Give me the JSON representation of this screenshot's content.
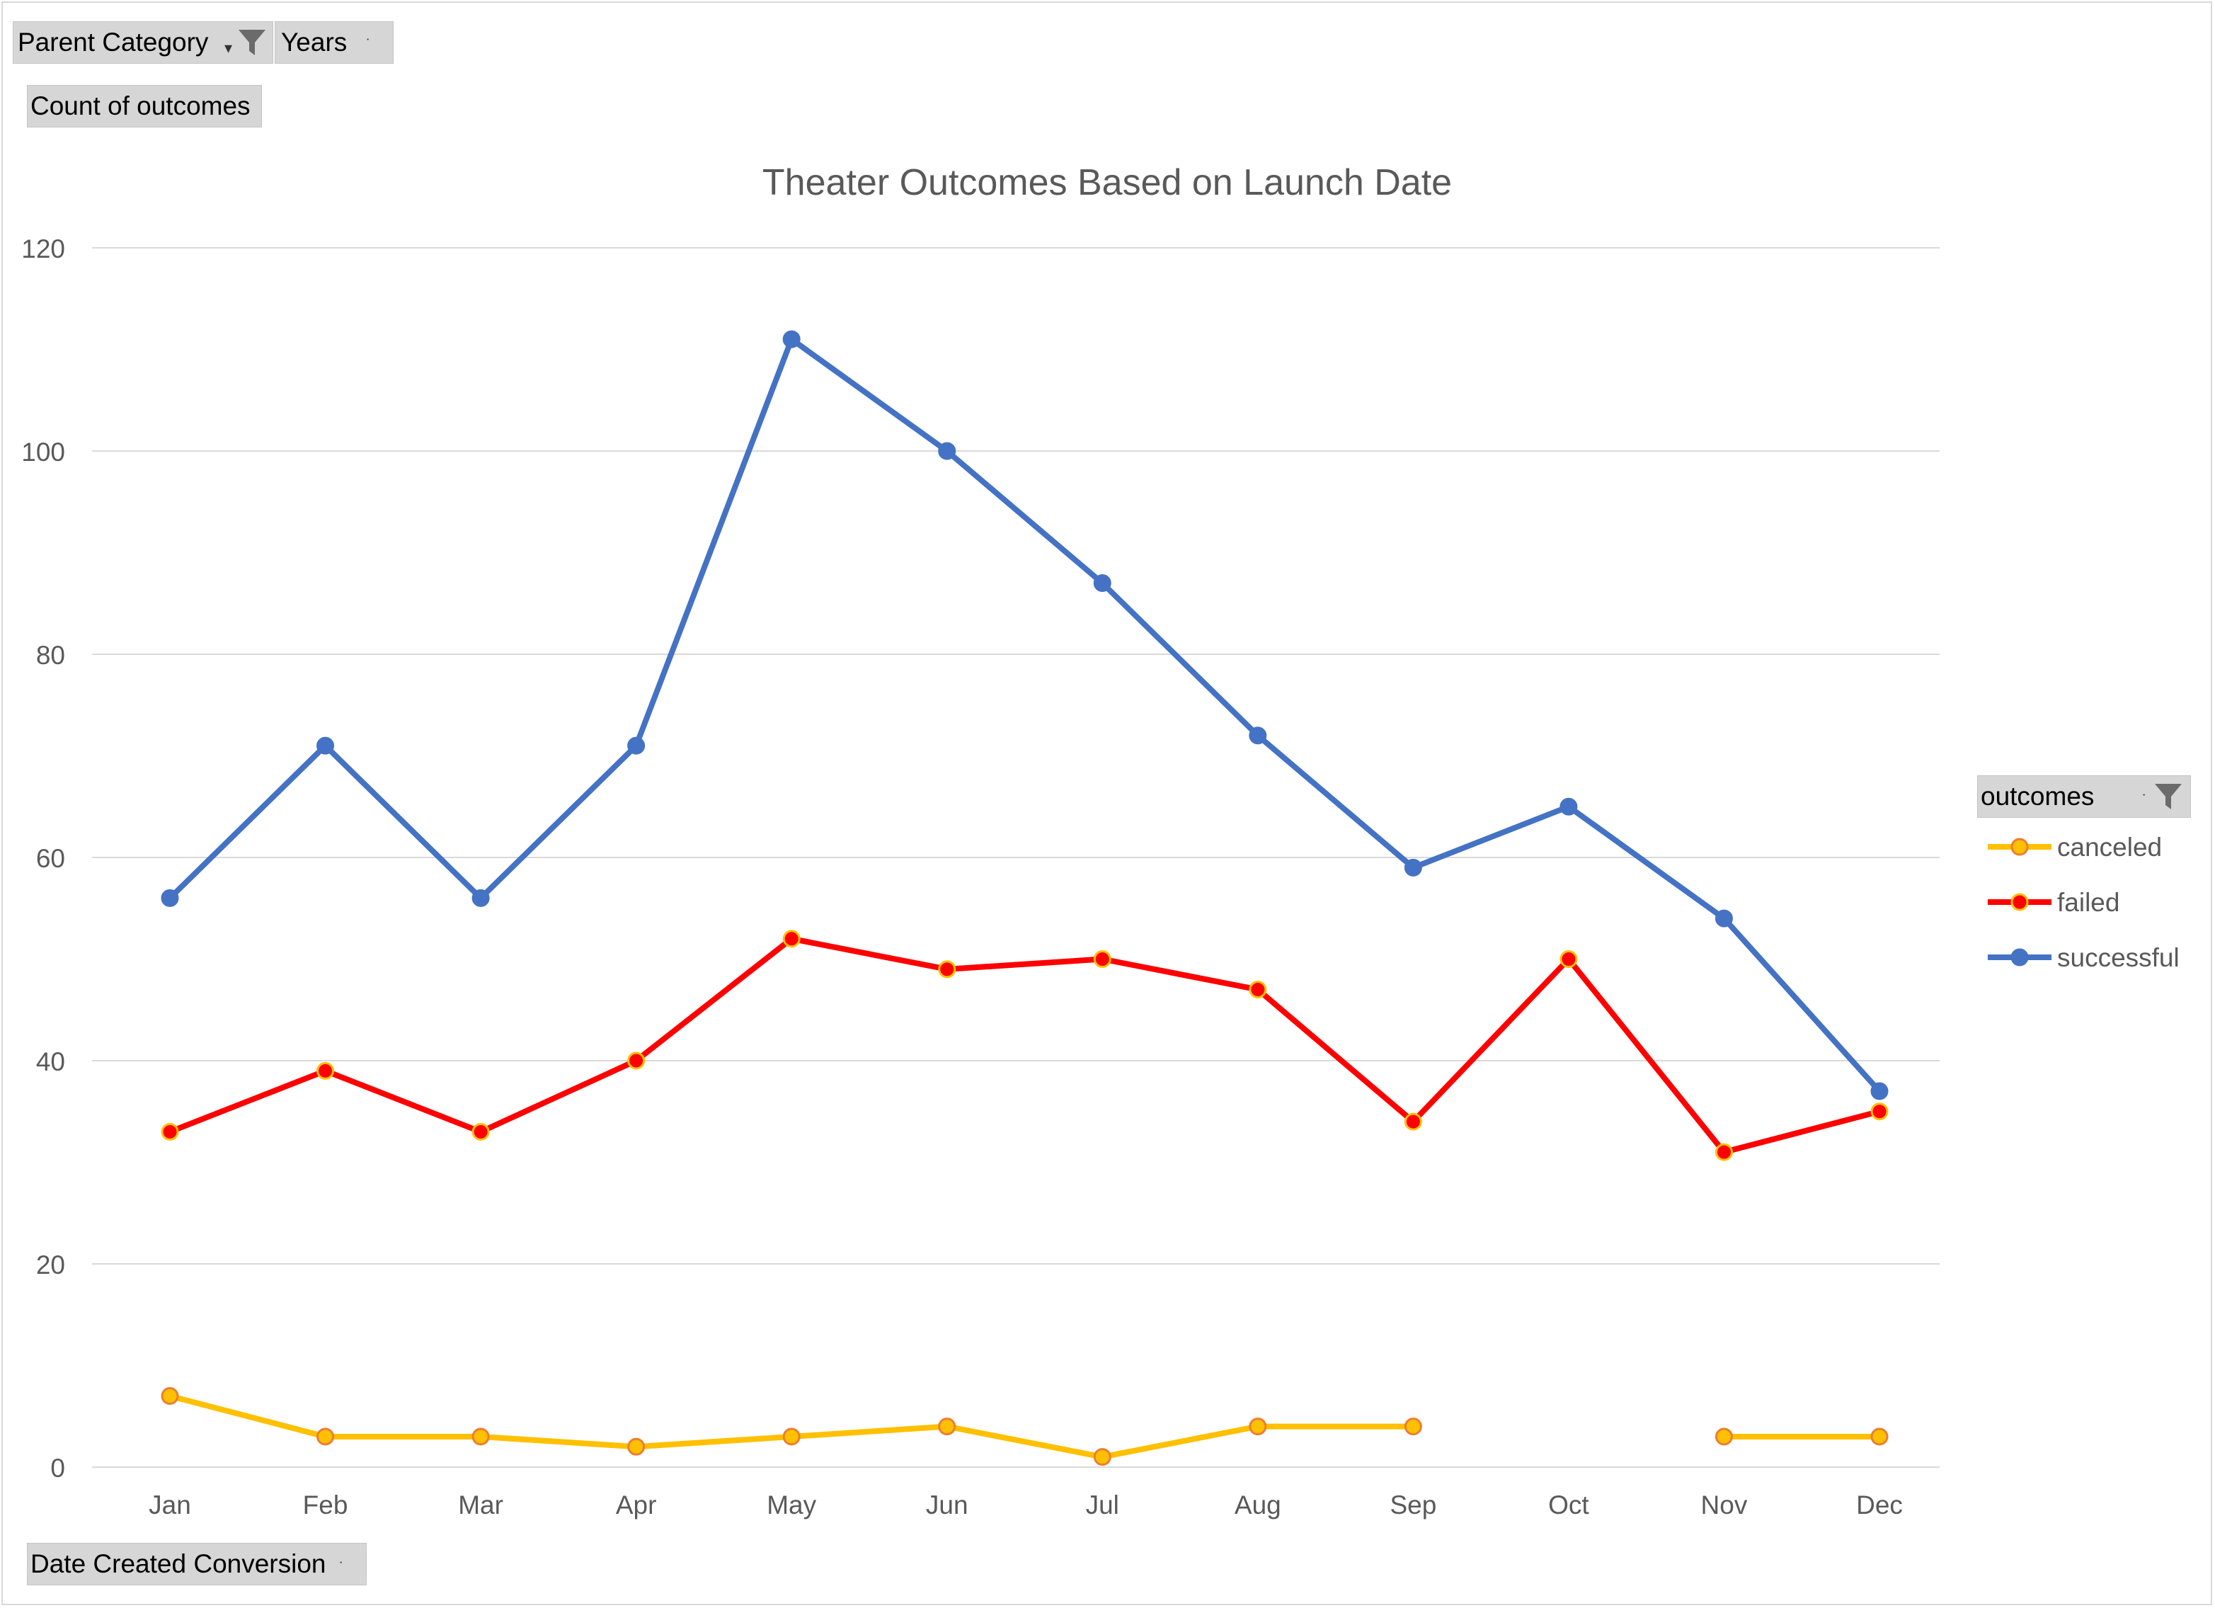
{
  "pivot_fields": {
    "filter1_label": "Parent Category",
    "filter2_label": "Years",
    "values_label": "Count of outcomes",
    "axis_field_label": "Date Created Conversion",
    "legend_field_label": "outcomes"
  },
  "icons": {
    "filter": "filter-funnel-icon",
    "dropdown": "chevron-down-icon"
  },
  "chart_data": {
    "type": "line",
    "title": "Theater Outcomes Based on Launch Date",
    "xlabel": "",
    "ylabel": "",
    "ylim": [
      0,
      120
    ],
    "yticks": [
      0,
      20,
      40,
      60,
      80,
      100,
      120
    ],
    "grid": true,
    "legend_position": "right",
    "categories": [
      "Jan",
      "Feb",
      "Mar",
      "Apr",
      "May",
      "Jun",
      "Jul",
      "Aug",
      "Sep",
      "Oct",
      "Nov",
      "Dec"
    ],
    "series": [
      {
        "name": "canceled",
        "color": "#ffc000",
        "marker_fill": "#ffc000",
        "marker_stroke": "#ed7d31",
        "values": [
          7,
          3,
          3,
          2,
          3,
          4,
          1,
          4,
          4,
          null,
          3,
          3
        ]
      },
      {
        "name": "failed",
        "color": "#ff0000",
        "marker_fill": "#ff0000",
        "marker_stroke": "#ffc000",
        "values": [
          33,
          39,
          33,
          40,
          52,
          49,
          50,
          47,
          34,
          50,
          31,
          35
        ]
      },
      {
        "name": "successful",
        "color": "#4472c4",
        "marker_fill": "#4472c4",
        "marker_stroke": "#4472c4",
        "values": [
          56,
          71,
          56,
          71,
          111,
          100,
          87,
          72,
          59,
          65,
          54,
          37
        ]
      }
    ]
  }
}
